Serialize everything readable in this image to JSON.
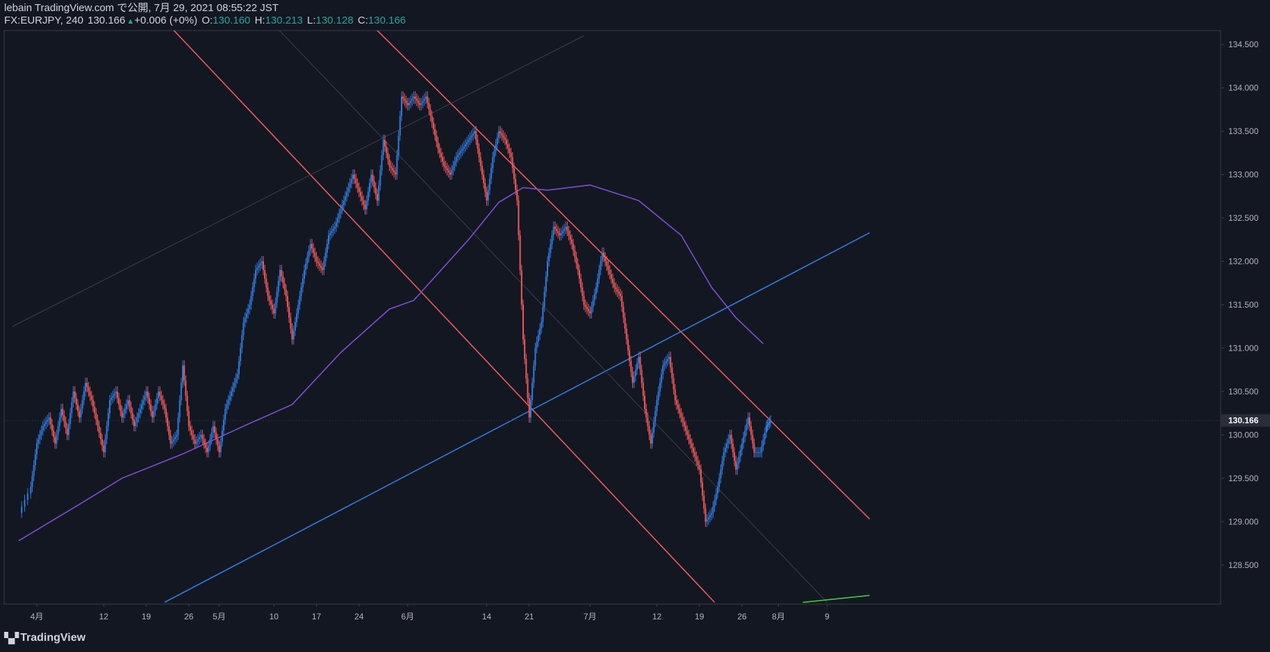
{
  "header": {
    "published": "lebain TradingView.com で公開, 7月 29, 2021 08:55:22 JST",
    "symbol": "FX:EURJPY, 240",
    "last": "130.166",
    "change_arrow": "▲",
    "change": "+0.006 (+0%)",
    "o_label": "O:",
    "o_value": "130.160",
    "h_label": "H:",
    "h_value": "130.213",
    "l_label": "L:",
    "l_value": "130.128",
    "c_label": "C:",
    "c_value": "130.166"
  },
  "logo": {
    "text": "TradingView",
    "icon": "tradingview-logo-icon"
  },
  "colors": {
    "background": "#131722",
    "up_candle": "#2f7de1",
    "down_candle": "#f05a5a",
    "moving_average": "#7e4fd6",
    "channel_line": "#f05a5a",
    "trend_line": "#2f7de1",
    "green_line": "#3ddc3d",
    "last_price_label_bg": "#2a2e39"
  },
  "chart_data": {
    "type": "candlestick",
    "symbol": "FX:EURJPY",
    "timeframe": "240",
    "ylim": [
      128.05,
      134.66
    ],
    "y_ticks": [
      "134.500",
      "134.000",
      "133.500",
      "133.000",
      "132.500",
      "132.000",
      "131.500",
      "131.000",
      "130.500",
      "130.000",
      "129.500",
      "129.000",
      "128.500"
    ],
    "x_ticks": [
      {
        "label": "4月",
        "day": 0
      },
      {
        "label": "12",
        "day": 11
      },
      {
        "label": "19",
        "day": 18
      },
      {
        "label": "26",
        "day": 25
      },
      {
        "label": "5月",
        "day": 30
      },
      {
        "label": "10",
        "day": 39
      },
      {
        "label": "17",
        "day": 46
      },
      {
        "label": "24",
        "day": 53
      },
      {
        "label": "6月",
        "day": 61
      },
      {
        "label": "14",
        "day": 74
      },
      {
        "label": "21",
        "day": 81
      },
      {
        "label": "7月",
        "day": 91
      },
      {
        "label": "12",
        "day": 102
      },
      {
        "label": "19",
        "day": 109
      },
      {
        "label": "26",
        "day": 116
      },
      {
        "label": "8月",
        "day": 122
      },
      {
        "label": "9",
        "day": 130
      }
    ],
    "last_price": {
      "label": "130.166",
      "value": 130.166
    },
    "closes": [
      {
        "day": -3,
        "value": 129.1
      },
      {
        "day": -1,
        "value": 129.4
      },
      {
        "day": 0,
        "value": 129.9
      },
      {
        "day": 1,
        "value": 130.1
      },
      {
        "day": 2,
        "value": 130.2
      },
      {
        "day": 3,
        "value": 129.9
      },
      {
        "day": 4,
        "value": 130.3
      },
      {
        "day": 5,
        "value": 130.0
      },
      {
        "day": 6,
        "value": 130.5
      },
      {
        "day": 7,
        "value": 130.2
      },
      {
        "day": 8,
        "value": 130.6
      },
      {
        "day": 9,
        "value": 130.4
      },
      {
        "day": 10,
        "value": 130.1
      },
      {
        "day": 11,
        "value": 129.8
      },
      {
        "day": 12,
        "value": 130.4
      },
      {
        "day": 13,
        "value": 130.5
      },
      {
        "day": 14,
        "value": 130.2
      },
      {
        "day": 15,
        "value": 130.4
      },
      {
        "day": 16,
        "value": 130.1
      },
      {
        "day": 17,
        "value": 130.3
      },
      {
        "day": 18,
        "value": 130.5
      },
      {
        "day": 19,
        "value": 130.2
      },
      {
        "day": 20,
        "value": 130.5
      },
      {
        "day": 21,
        "value": 130.3
      },
      {
        "day": 22,
        "value": 129.9
      },
      {
        "day": 23,
        "value": 130.0
      },
      {
        "day": 24,
        "value": 130.8
      },
      {
        "day": 25,
        "value": 130.1
      },
      {
        "day": 26,
        "value": 129.9
      },
      {
        "day": 27,
        "value": 130.0
      },
      {
        "day": 28,
        "value": 129.8
      },
      {
        "day": 29,
        "value": 130.1
      },
      {
        "day": 30,
        "value": 129.8
      },
      {
        "day": 31,
        "value": 130.3
      },
      {
        "day": 32,
        "value": 130.5
      },
      {
        "day": 33,
        "value": 130.7
      },
      {
        "day": 34,
        "value": 131.3
      },
      {
        "day": 35,
        "value": 131.5
      },
      {
        "day": 36,
        "value": 131.9
      },
      {
        "day": 37,
        "value": 132.0
      },
      {
        "day": 38,
        "value": 131.6
      },
      {
        "day": 39,
        "value": 131.4
      },
      {
        "day": 40,
        "value": 131.9
      },
      {
        "day": 41,
        "value": 131.6
      },
      {
        "day": 42,
        "value": 131.1
      },
      {
        "day": 43,
        "value": 131.5
      },
      {
        "day": 44,
        "value": 131.9
      },
      {
        "day": 45,
        "value": 132.2
      },
      {
        "day": 46,
        "value": 132.0
      },
      {
        "day": 47,
        "value": 131.9
      },
      {
        "day": 48,
        "value": 132.3
      },
      {
        "day": 49,
        "value": 132.4
      },
      {
        "day": 50,
        "value": 132.6
      },
      {
        "day": 51,
        "value": 132.8
      },
      {
        "day": 52,
        "value": 133.0
      },
      {
        "day": 53,
        "value": 132.8
      },
      {
        "day": 54,
        "value": 132.6
      },
      {
        "day": 55,
        "value": 133.0
      },
      {
        "day": 56,
        "value": 132.7
      },
      {
        "day": 57,
        "value": 133.4
      },
      {
        "day": 58,
        "value": 133.1
      },
      {
        "day": 59,
        "value": 133.0
      },
      {
        "day": 60,
        "value": 133.9
      },
      {
        "day": 61,
        "value": 133.8
      },
      {
        "day": 62,
        "value": 133.9
      },
      {
        "day": 63,
        "value": 133.8
      },
      {
        "day": 64,
        "value": 133.9
      },
      {
        "day": 65,
        "value": 133.6
      },
      {
        "day": 66,
        "value": 133.3
      },
      {
        "day": 67,
        "value": 133.1
      },
      {
        "day": 68,
        "value": 133.0
      },
      {
        "day": 69,
        "value": 133.2
      },
      {
        "day": 70,
        "value": 133.3
      },
      {
        "day": 71,
        "value": 133.4
      },
      {
        "day": 72,
        "value": 133.5
      },
      {
        "day": 73,
        "value": 133.1
      },
      {
        "day": 74,
        "value": 132.7
      },
      {
        "day": 75,
        "value": 133.2
      },
      {
        "day": 76,
        "value": 133.5
      },
      {
        "day": 77,
        "value": 133.4
      },
      {
        "day": 78,
        "value": 133.2
      },
      {
        "day": 79,
        "value": 132.7
      },
      {
        "day": 80,
        "value": 131.1
      },
      {
        "day": 81,
        "value": 130.2
      },
      {
        "day": 82,
        "value": 131.0
      },
      {
        "day": 83,
        "value": 131.3
      },
      {
        "day": 84,
        "value": 132.0
      },
      {
        "day": 85,
        "value": 132.4
      },
      {
        "day": 86,
        "value": 132.3
      },
      {
        "day": 87,
        "value": 132.4
      },
      {
        "day": 88,
        "value": 132.2
      },
      {
        "day": 89,
        "value": 131.9
      },
      {
        "day": 90,
        "value": 131.5
      },
      {
        "day": 91,
        "value": 131.4
      },
      {
        "day": 92,
        "value": 131.7
      },
      {
        "day": 93,
        "value": 132.1
      },
      {
        "day": 94,
        "value": 131.9
      },
      {
        "day": 95,
        "value": 131.7
      },
      {
        "day": 96,
        "value": 131.6
      },
      {
        "day": 97,
        "value": 131.1
      },
      {
        "day": 98,
        "value": 130.6
      },
      {
        "day": 99,
        "value": 130.9
      },
      {
        "day": 100,
        "value": 130.3
      },
      {
        "day": 101,
        "value": 129.9
      },
      {
        "day": 102,
        "value": 130.4
      },
      {
        "day": 103,
        "value": 130.8
      },
      {
        "day": 104,
        "value": 130.9
      },
      {
        "day": 105,
        "value": 130.4
      },
      {
        "day": 106,
        "value": 130.2
      },
      {
        "day": 107,
        "value": 130.0
      },
      {
        "day": 108,
        "value": 129.8
      },
      {
        "day": 109,
        "value": 129.6
      },
      {
        "day": 110,
        "value": 129.0
      },
      {
        "day": 111,
        "value": 129.1
      },
      {
        "day": 112,
        "value": 129.4
      },
      {
        "day": 113,
        "value": 129.8
      },
      {
        "day": 114,
        "value": 130.0
      },
      {
        "day": 115,
        "value": 129.6
      },
      {
        "day": 116,
        "value": 129.9
      },
      {
        "day": 117,
        "value": 130.2
      },
      {
        "day": 118,
        "value": 129.8
      },
      {
        "day": 119,
        "value": 129.8
      },
      {
        "day": 120,
        "value": 130.1
      },
      {
        "day": 120.7,
        "value": 130.166
      }
    ],
    "moving_average": [
      {
        "day": -3,
        "value": 128.78
      },
      {
        "day": 7,
        "value": 129.2
      },
      {
        "day": 14,
        "value": 129.5
      },
      {
        "day": 24,
        "value": 129.78
      },
      {
        "day": 34,
        "value": 130.1
      },
      {
        "day": 42,
        "value": 130.35
      },
      {
        "day": 50,
        "value": 130.95
      },
      {
        "day": 58,
        "value": 131.45
      },
      {
        "day": 62,
        "value": 131.55
      },
      {
        "day": 71,
        "value": 132.25
      },
      {
        "day": 76,
        "value": 132.68
      },
      {
        "day": 80,
        "value": 132.85
      },
      {
        "day": 84,
        "value": 132.82
      },
      {
        "day": 91,
        "value": 132.88
      },
      {
        "day": 99,
        "value": 132.7
      },
      {
        "day": 106,
        "value": 132.3
      },
      {
        "day": 111,
        "value": 131.7
      },
      {
        "day": 115,
        "value": 131.35
      },
      {
        "day": 119.5,
        "value": 131.05
      }
    ],
    "lines": [
      {
        "name": "upper-channel",
        "color": "#f05a5a",
        "points": [
          {
            "day": 54,
            "value": 134.8
          },
          {
            "day": 137,
            "value": 129.03
          }
        ]
      },
      {
        "name": "lower-channel",
        "color": "#f05a5a",
        "points": [
          {
            "day": 20,
            "value": 134.85
          },
          {
            "day": 111.5,
            "value": 128.07
          }
        ]
      },
      {
        "name": "trend-line",
        "color": "#2f7de1",
        "points": [
          {
            "day": 21,
            "value": 128.07
          },
          {
            "day": 137,
            "value": 132.33
          }
        ]
      },
      {
        "name": "mid-channel-faint",
        "color": "#3a3f4d",
        "points": [
          {
            "day": 38,
            "value": 134.8
          },
          {
            "day": 130,
            "value": 128.07
          }
        ]
      },
      {
        "name": "upper-faint",
        "color": "#3a3f4d",
        "points": [
          {
            "day": -4,
            "value": 131.25
          },
          {
            "day": 90,
            "value": 134.6
          }
        ]
      },
      {
        "name": "green-line",
        "color": "#3ddc3d",
        "points": [
          {
            "day": 126,
            "value": 128.07
          },
          {
            "day": 137,
            "value": 128.15
          }
        ]
      }
    ]
  }
}
